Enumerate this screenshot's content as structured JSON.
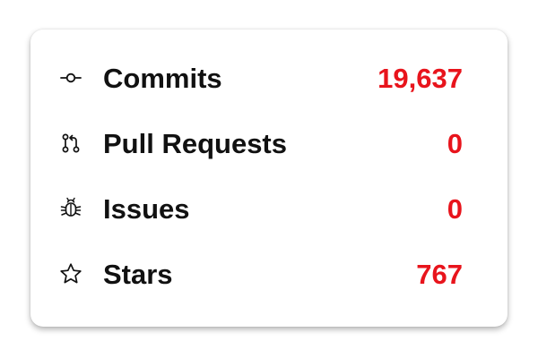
{
  "stats": {
    "rows": [
      {
        "icon": "commit-icon",
        "label": "Commits",
        "value": "19,637"
      },
      {
        "icon": "pull-request-icon",
        "label": "Pull Requests",
        "value": "0"
      },
      {
        "icon": "bug-icon",
        "label": "Issues",
        "value": "0"
      },
      {
        "icon": "star-icon",
        "label": "Stars",
        "value": "767"
      }
    ],
    "value_color": "#e8141c",
    "label_color": "#111111"
  }
}
